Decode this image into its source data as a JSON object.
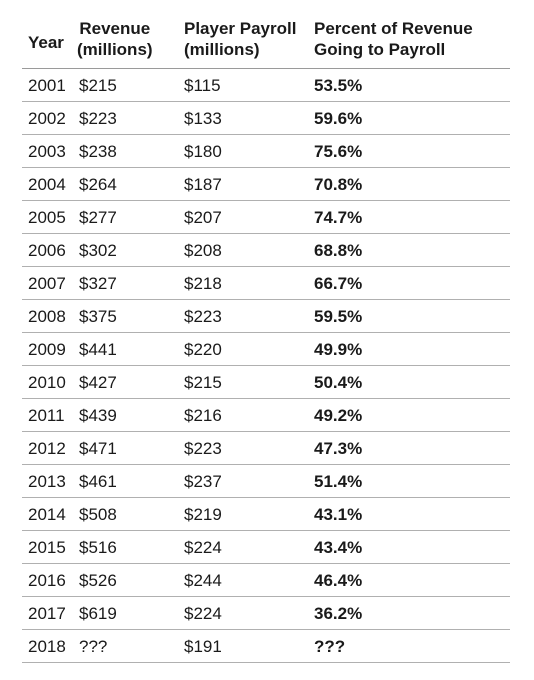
{
  "chart_data": {
    "type": "table",
    "columns": [
      {
        "key": "year",
        "line1": "Year",
        "line2": ""
      },
      {
        "key": "revenue",
        "line1": "Revenue",
        "line2": "(millions)"
      },
      {
        "key": "payroll",
        "line1": "Player Payroll",
        "line2": "(millions)"
      },
      {
        "key": "percent",
        "line1": "Percent of Revenue",
        "line2": "Going to Payroll"
      }
    ],
    "rows": [
      {
        "year": "2001",
        "revenue": "$215",
        "payroll": "$115",
        "percent": "53.5%"
      },
      {
        "year": "2002",
        "revenue": "$223",
        "payroll": "$133",
        "percent": "59.6%"
      },
      {
        "year": "2003",
        "revenue": "$238",
        "payroll": "$180",
        "percent": "75.6%"
      },
      {
        "year": "2004",
        "revenue": "$264",
        "payroll": "$187",
        "percent": "70.8%"
      },
      {
        "year": "2005",
        "revenue": "$277",
        "payroll": "$207",
        "percent": "74.7%"
      },
      {
        "year": "2006",
        "revenue": "$302",
        "payroll": "$208",
        "percent": "68.8%"
      },
      {
        "year": "2007",
        "revenue": "$327",
        "payroll": "$218",
        "percent": "66.7%"
      },
      {
        "year": "2008",
        "revenue": "$375",
        "payroll": "$223",
        "percent": "59.5%"
      },
      {
        "year": "2009",
        "revenue": "$441",
        "payroll": "$220",
        "percent": "49.9%"
      },
      {
        "year": "2010",
        "revenue": "$427",
        "payroll": "$215",
        "percent": "50.4%"
      },
      {
        "year": "2011",
        "revenue": "$439",
        "payroll": "$216",
        "percent": "49.2%"
      },
      {
        "year": "2012",
        "revenue": "$471",
        "payroll": "$223",
        "percent": "47.3%"
      },
      {
        "year": "2013",
        "revenue": "$461",
        "payroll": "$237",
        "percent": "51.4%"
      },
      {
        "year": "2014",
        "revenue": "$508",
        "payroll": "$219",
        "percent": "43.1%"
      },
      {
        "year": "2015",
        "revenue": "$516",
        "payroll": "$224",
        "percent": "43.4%"
      },
      {
        "year": "2016",
        "revenue": "$526",
        "payroll": "$244",
        "percent": "46.4%"
      },
      {
        "year": "2017",
        "revenue": "$619",
        "payroll": "$224",
        "percent": "36.2%"
      },
      {
        "year": "2018",
        "revenue": "???",
        "payroll": "$191",
        "percent": "???"
      }
    ]
  }
}
